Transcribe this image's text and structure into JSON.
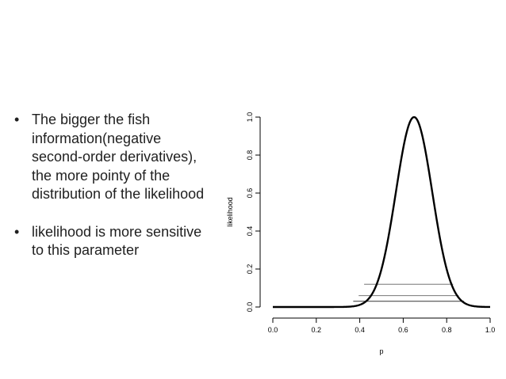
{
  "bullets": [
    {
      "marker": "•",
      "text": "The bigger the fish information(negative second-order derivatives), the more pointy of the distribution of the likelihood"
    },
    {
      "marker": "•",
      "text": "likelihood is more sensitive to this parameter"
    }
  ],
  "chart_data": {
    "type": "line",
    "title": "",
    "xlabel": "p",
    "ylabel": "likelihood",
    "xlim": [
      0,
      1
    ],
    "ylim": [
      0,
      1
    ],
    "x_ticks": [
      "0.0",
      "0.2",
      "0.4",
      "0.6",
      "0.8",
      "1.0"
    ],
    "y_ticks": [
      "0.0",
      "0.2",
      "0.4",
      "0.6",
      "0.8",
      "1.0"
    ],
    "grid": false,
    "series": [
      {
        "curve": "gaussian",
        "peak_x": 0.65,
        "peak_y": 1.0,
        "sd": 0.0835,
        "color": "#000000"
      }
    ],
    "horizontal_segments": [
      {
        "y": 0.12,
        "x_start": 0.42,
        "x_end": 0.83,
        "color": "#777777"
      },
      {
        "y": 0.06,
        "x_start": 0.395,
        "x_end": 0.855,
        "color": "#777777"
      },
      {
        "y": 0.03,
        "x_start": 0.37,
        "x_end": 0.88,
        "color": "#333333"
      }
    ]
  }
}
